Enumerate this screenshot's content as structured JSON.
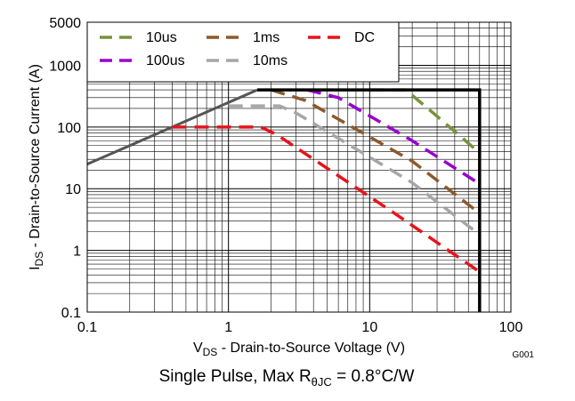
{
  "chart_data": {
    "type": "line",
    "title": "",
    "xlabel_main": "V",
    "xlabel_sub": "DS",
    "xlabel_rest": " - Drain-to-Source Voltage (V)",
    "ylabel_main": "I",
    "ylabel_sub": "DS",
    "ylabel_rest": " - Drain-to-Source Current (A)",
    "x_scale": "log",
    "y_scale": "log",
    "xlim": [
      0.1,
      100
    ],
    "ylim": [
      0.1,
      5000
    ],
    "x_ticks": [
      {
        "value": 0.1,
        "label": "0.1"
      },
      {
        "value": 1,
        "label": "1"
      },
      {
        "value": 10,
        "label": "10"
      },
      {
        "value": 100,
        "label": "100"
      }
    ],
    "y_ticks": [
      {
        "value": 0.1,
        "label": "0.1"
      },
      {
        "value": 1,
        "label": "1"
      },
      {
        "value": 10,
        "label": "10"
      },
      {
        "value": 100,
        "label": "100"
      },
      {
        "value": 1000,
        "label": "1000"
      },
      {
        "value": 5000,
        "label": "5000"
      }
    ],
    "grid": true,
    "legend_position": "top-left",
    "legend_layout": [
      [
        "10us",
        "1ms",
        "DC"
      ],
      [
        "100us",
        "10ms"
      ]
    ],
    "boundary": {
      "name": "SOA limit",
      "color": "#000000",
      "points": [
        [
          1.6,
          400
        ],
        [
          60,
          400
        ],
        [
          60,
          0.1
        ]
      ]
    },
    "rds_limit": {
      "name": "RDS(on) limit",
      "color": "#555555",
      "points": [
        [
          0.1,
          25
        ],
        [
          1.6,
          400
        ]
      ]
    },
    "series": [
      {
        "name": "10us",
        "color": "#77933C",
        "points": [
          [
            10,
            400
          ],
          [
            18,
            400
          ],
          [
            30,
            150
          ],
          [
            60,
            38
          ]
        ]
      },
      {
        "name": "100us",
        "color": "#9900CC",
        "points": [
          [
            3.6,
            400
          ],
          [
            6,
            300
          ],
          [
            20,
            60
          ],
          [
            60,
            12
          ]
        ]
      },
      {
        "name": "1ms",
        "color": "#8B5A2B",
        "points": [
          [
            2,
            400
          ],
          [
            3.5,
            270
          ],
          [
            20,
            28
          ],
          [
            60,
            4
          ]
        ]
      },
      {
        "name": "10ms",
        "color": "#A6A6A6",
        "points": [
          [
            1,
            220
          ],
          [
            2.3,
            220
          ],
          [
            3,
            170
          ],
          [
            20,
            12.5
          ],
          [
            60,
            1.8
          ]
        ]
      },
      {
        "name": "DC",
        "color": "#E8131B",
        "points": [
          [
            0.4,
            100
          ],
          [
            1.7,
            100
          ],
          [
            2.2,
            75
          ],
          [
            15,
            4
          ],
          [
            60,
            0.45
          ]
        ]
      }
    ],
    "figure_id": "G001",
    "caption_pre": "Single Pulse, Max R",
    "caption_sub": "θJC",
    "caption_post": " = 0.8°C/W"
  }
}
